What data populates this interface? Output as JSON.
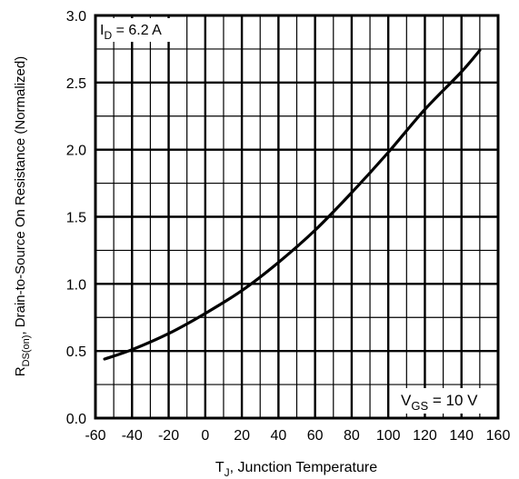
{
  "chart_data": {
    "type": "line",
    "xlabel": {
      "main": "T",
      "sub": "J",
      "rest": ", Junction Temperature"
    },
    "ylabel": {
      "main": "R",
      "sub": "DS(on)",
      "rest": ", Drain-to-Source On Resistance (Normalized)"
    },
    "xlim": [
      -60,
      160
    ],
    "ylim": [
      0.0,
      3.0
    ],
    "x_ticks": [
      "-60",
      "-40",
      "-20",
      "0",
      "20",
      "40",
      "60",
      "80",
      "100",
      "120",
      "140",
      "160"
    ],
    "y_ticks": [
      "0.0",
      "0.5",
      "1.0",
      "1.5",
      "2.0",
      "2.5",
      "3.0"
    ],
    "grid": true,
    "annotations": [
      {
        "main": "I",
        "sub": "D",
        "rest": " = 6.2 A",
        "position": "top-left"
      },
      {
        "main": "V",
        "sub": "GS",
        "rest": " = 10 V",
        "position": "bottom-right"
      }
    ],
    "series": [
      {
        "x": [
          -55,
          -40,
          -20,
          0,
          20,
          40,
          60,
          80,
          100,
          120,
          140,
          150
        ],
        "y": [
          0.44,
          0.51,
          0.63,
          0.78,
          0.95,
          1.16,
          1.4,
          1.68,
          1.98,
          2.3,
          2.58,
          2.74
        ]
      }
    ]
  }
}
